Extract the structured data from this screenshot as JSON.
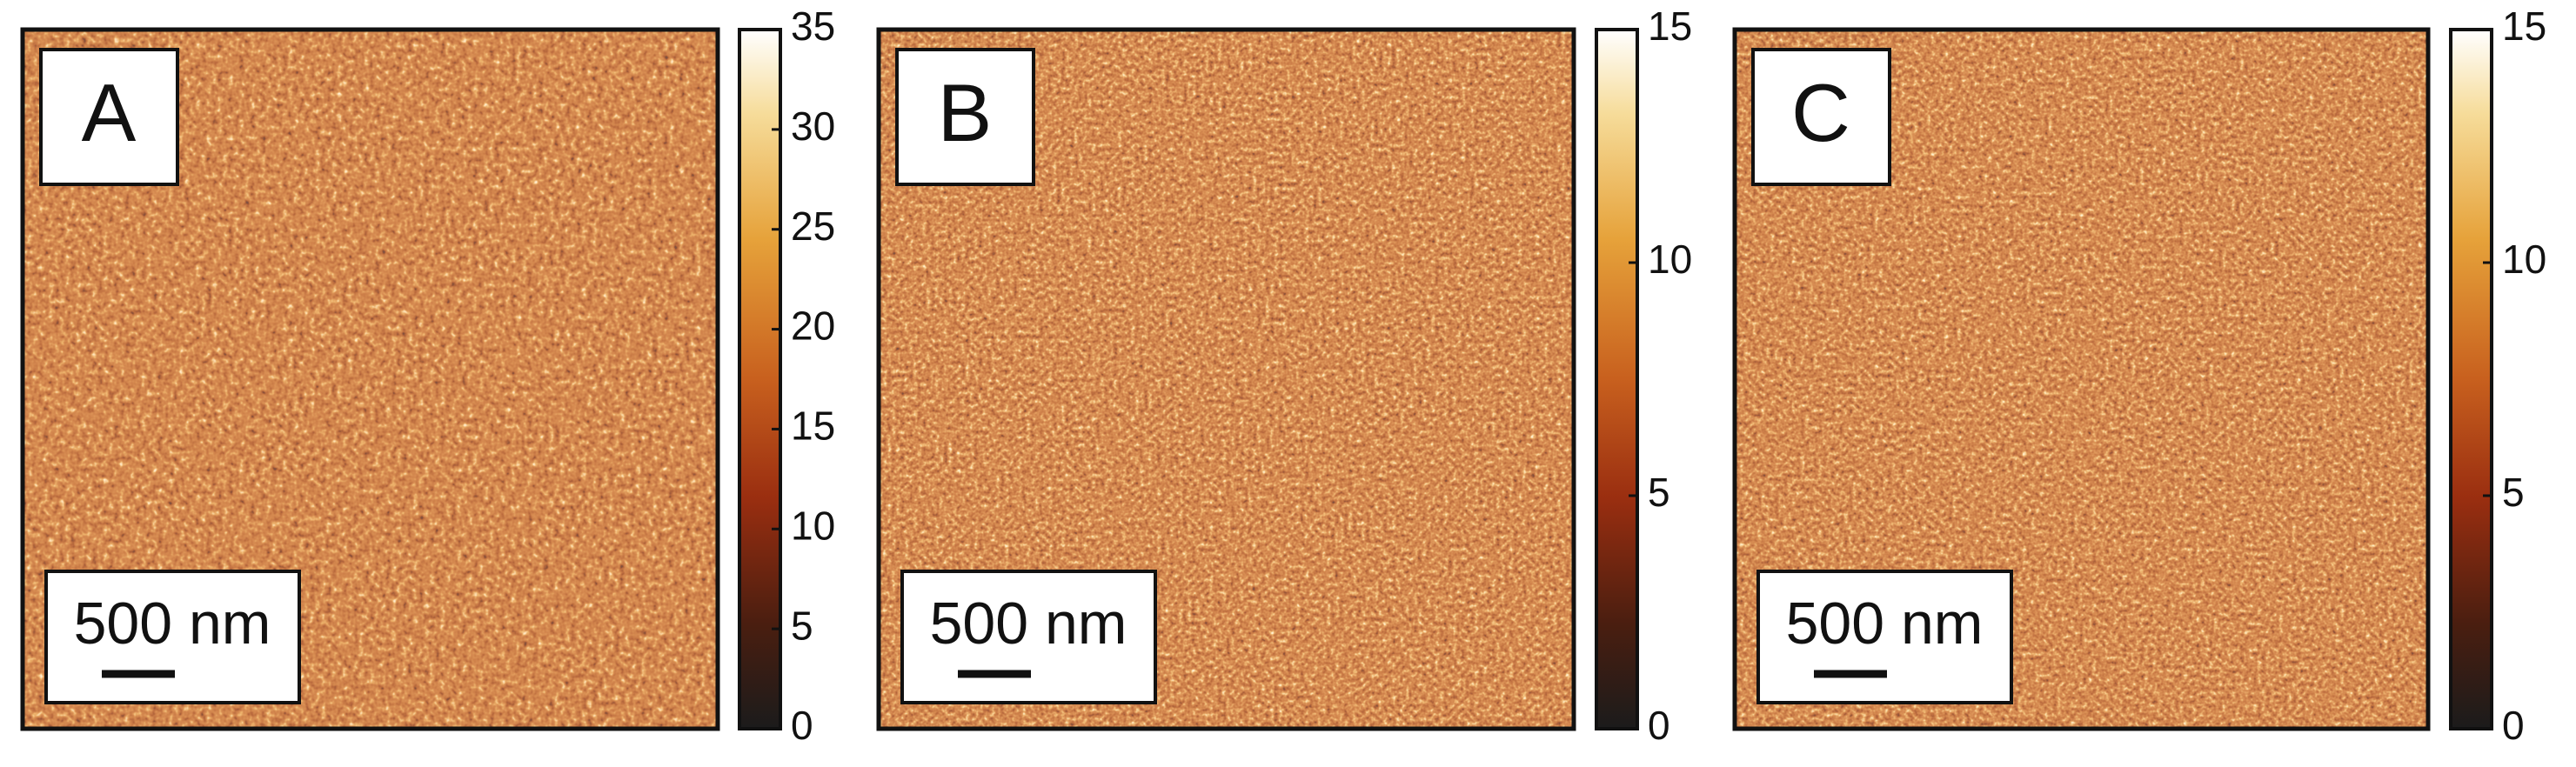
{
  "panels": [
    {
      "label": "A",
      "scale_bar": "500 nm",
      "colorbar": {
        "lim": [
          0,
          35
        ],
        "ticks": [
          0,
          5,
          10,
          15,
          20,
          25,
          30,
          35
        ]
      }
    },
    {
      "label": "B",
      "scale_bar": "500 nm",
      "colorbar": {
        "lim": [
          0,
          15
        ],
        "ticks": [
          0,
          5,
          10,
          15
        ]
      }
    },
    {
      "label": "C",
      "scale_bar": "500 nm",
      "colorbar": {
        "lim": [
          0,
          15
        ],
        "ticks": [
          0,
          5,
          10,
          15
        ]
      }
    }
  ]
}
